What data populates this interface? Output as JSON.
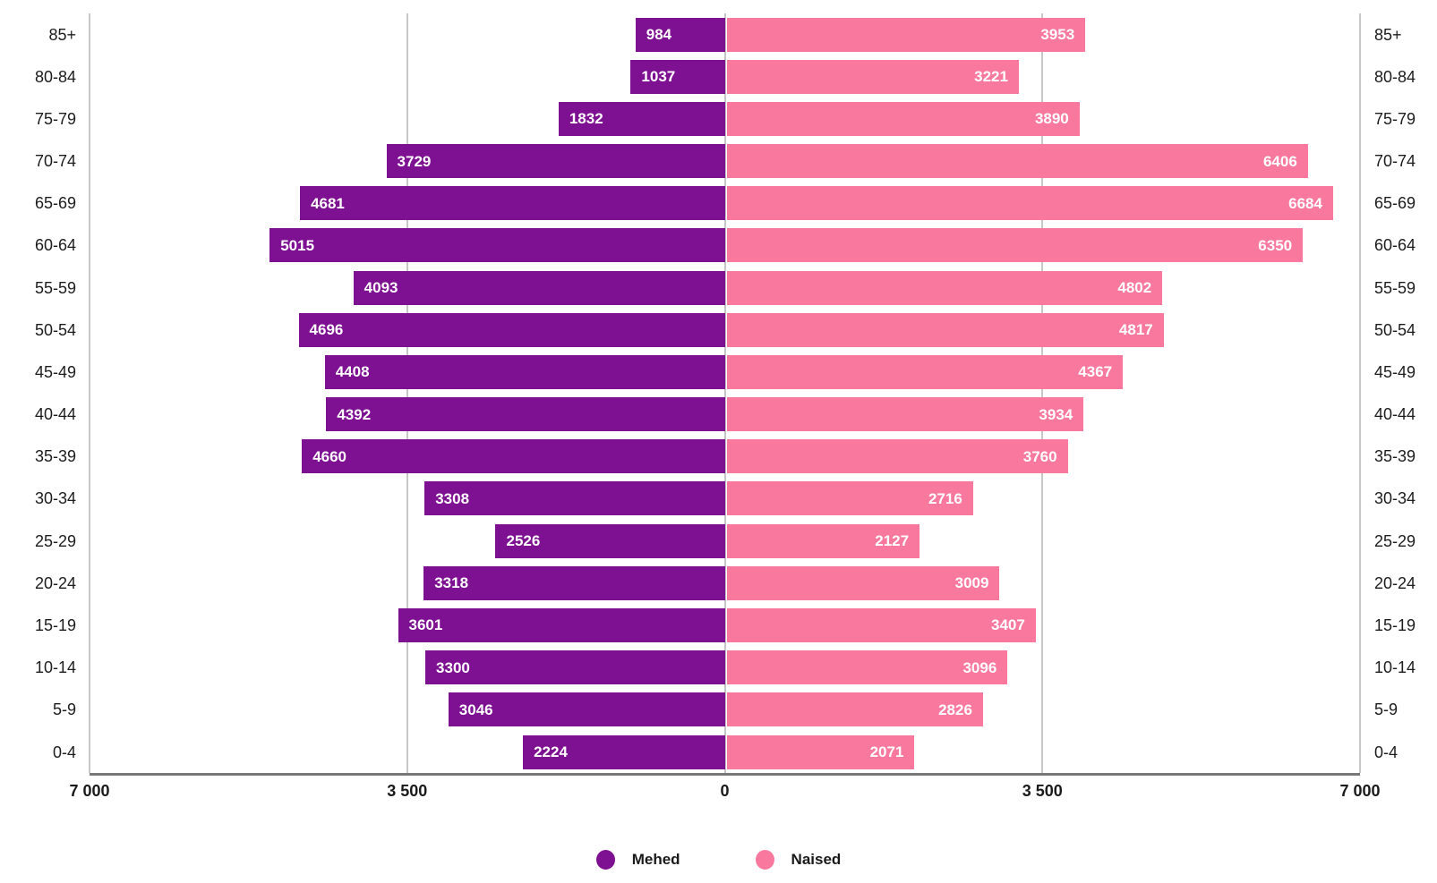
{
  "chart_data": {
    "type": "bar",
    "subtype": "population-pyramid",
    "orientation": "horizontal",
    "categories": [
      "85+",
      "80-84",
      "75-79",
      "70-74",
      "65-69",
      "60-64",
      "55-59",
      "50-54",
      "45-49",
      "40-44",
      "35-39",
      "30-34",
      "25-29",
      "20-24",
      "15-19",
      "10-14",
      "5-9",
      "0-4"
    ],
    "series": [
      {
        "name": "Mehed",
        "side": "left",
        "color": "#7E1192",
        "values": [
          984,
          1037,
          1832,
          3729,
          4681,
          5015,
          4093,
          4696,
          4408,
          4392,
          4660,
          3308,
          2526,
          3318,
          3601,
          3300,
          3046,
          2224
        ]
      },
      {
        "name": "Naised",
        "side": "right",
        "color": "#F9799E",
        "values": [
          3953,
          3221,
          3890,
          6406,
          6684,
          6350,
          4802,
          4817,
          4367,
          3934,
          3760,
          2716,
          2127,
          3009,
          3407,
          3096,
          2826,
          2071
        ]
      }
    ],
    "xlim": [
      0,
      7000
    ],
    "x_ticks": [
      "7 000",
      "3 500",
      "0",
      "3 500",
      "7 000"
    ],
    "grid": true,
    "gridline_color": "#c7c7c7",
    "axis_line_color": "#787878",
    "value_label_color": "#ffffff",
    "legend_position": "bottom"
  },
  "legend": {
    "items": [
      {
        "label": "Mehed",
        "color": "#7E1192"
      },
      {
        "label": "Naised",
        "color": "#F9799E"
      }
    ]
  }
}
